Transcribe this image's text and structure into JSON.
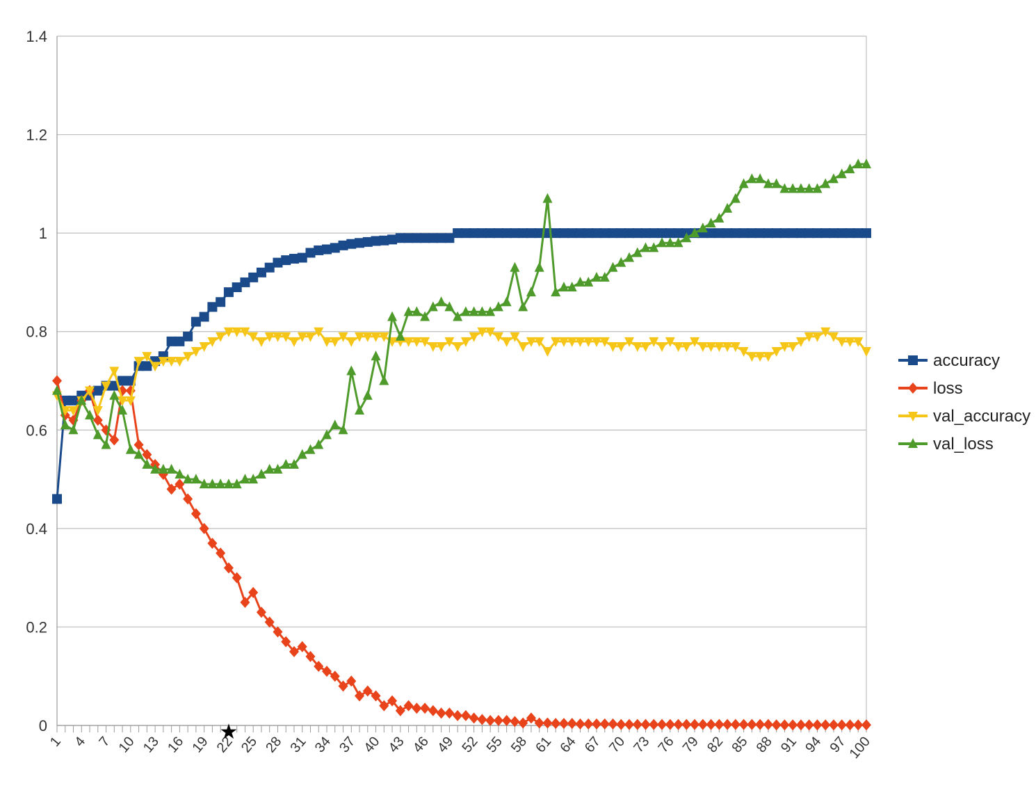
{
  "chart_data": {
    "type": "line",
    "title": "",
    "xlabel": "",
    "ylabel": "",
    "x": [
      1,
      2,
      3,
      4,
      5,
      6,
      7,
      8,
      9,
      10,
      11,
      12,
      13,
      14,
      15,
      16,
      17,
      18,
      19,
      20,
      21,
      22,
      23,
      24,
      25,
      26,
      27,
      28,
      29,
      30,
      31,
      32,
      33,
      34,
      35,
      36,
      37,
      38,
      39,
      40,
      41,
      42,
      43,
      44,
      45,
      46,
      47,
      48,
      49,
      50,
      51,
      52,
      53,
      54,
      55,
      56,
      57,
      58,
      59,
      60,
      61,
      62,
      63,
      64,
      65,
      66,
      67,
      68,
      69,
      70,
      71,
      72,
      73,
      74,
      75,
      76,
      77,
      78,
      79,
      80,
      81,
      82,
      83,
      84,
      85,
      86,
      87,
      88,
      89,
      90,
      91,
      92,
      93,
      94,
      95,
      96,
      97,
      98,
      99,
      100
    ],
    "x_tick_labels": [
      "1",
      "4",
      "7",
      "10",
      "13",
      "16",
      "19",
      "22",
      "25",
      "28",
      "31",
      "34",
      "37",
      "40",
      "43",
      "46",
      "49",
      "52",
      "55",
      "58",
      "61",
      "64",
      "67",
      "70",
      "73",
      "76",
      "79",
      "82",
      "85",
      "88",
      "91",
      "94",
      "97",
      "100"
    ],
    "ylim": [
      0,
      1.4
    ],
    "y_ticks": [
      0,
      0.2,
      0.4,
      0.6,
      0.8,
      1,
      1.2,
      1.4
    ],
    "y_tick_labels": [
      "0",
      "0.2",
      "0.4",
      "0.6",
      "0.8",
      "1",
      "1.2",
      "1.4"
    ],
    "grid": "horizontal",
    "legend_position": "right",
    "marker_annotation": {
      "symbol": "★",
      "x": 22
    },
    "series": [
      {
        "name": "accuracy",
        "color": "#1a4a8a",
        "marker": "square",
        "values": [
          0.46,
          0.66,
          0.66,
          0.67,
          0.67,
          0.68,
          0.69,
          0.69,
          0.7,
          0.7,
          0.73,
          0.73,
          0.74,
          0.75,
          0.78,
          0.78,
          0.79,
          0.82,
          0.83,
          0.85,
          0.86,
          0.88,
          0.89,
          0.9,
          0.91,
          0.92,
          0.93,
          0.94,
          0.945,
          0.948,
          0.95,
          0.96,
          0.965,
          0.967,
          0.97,
          0.975,
          0.978,
          0.98,
          0.982,
          0.984,
          0.985,
          0.987,
          0.99,
          0.99,
          0.99,
          0.99,
          0.99,
          0.99,
          0.99,
          1,
          1,
          1,
          1,
          1,
          1,
          1,
          1,
          1,
          1,
          1,
          1,
          1,
          1,
          1,
          1,
          1,
          1,
          1,
          1,
          1,
          1,
          1,
          1,
          1,
          1,
          1,
          1,
          1,
          1,
          1,
          1,
          1,
          1,
          1,
          1,
          1,
          1,
          1,
          1,
          1,
          1,
          1,
          1,
          1,
          1,
          1,
          1,
          1,
          1,
          1
        ]
      },
      {
        "name": "loss",
        "color": "#e8431a",
        "marker": "diamond",
        "values": [
          0.7,
          0.63,
          0.62,
          0.66,
          0.68,
          0.62,
          0.6,
          0.58,
          0.68,
          0.68,
          0.57,
          0.55,
          0.53,
          0.51,
          0.48,
          0.49,
          0.46,
          0.43,
          0.4,
          0.37,
          0.35,
          0.32,
          0.3,
          0.25,
          0.27,
          0.23,
          0.21,
          0.19,
          0.17,
          0.15,
          0.16,
          0.14,
          0.12,
          0.11,
          0.1,
          0.08,
          0.09,
          0.06,
          0.07,
          0.06,
          0.04,
          0.05,
          0.03,
          0.04,
          0.035,
          0.035,
          0.03,
          0.025,
          0.025,
          0.02,
          0.02,
          0.015,
          0.012,
          0.01,
          0.01,
          0.01,
          0.008,
          0.005,
          0.015,
          0.005,
          0.005,
          0.004,
          0.004,
          0.004,
          0.003,
          0.003,
          0.003,
          0.003,
          0.003,
          0.002,
          0.002,
          0.002,
          0.002,
          0.002,
          0.002,
          0.002,
          0.002,
          0.002,
          0.002,
          0.002,
          0.002,
          0.002,
          0.002,
          0.002,
          0.002,
          0.002,
          0.002,
          0.002,
          0.001,
          0.001,
          0.001,
          0.001,
          0.001,
          0.001,
          0.001,
          0.001,
          0.001,
          0.001,
          0.001,
          0.001
        ]
      },
      {
        "name": "val_accuracy",
        "color": "#f5c518",
        "marker": "triangle-down",
        "values": [
          0.67,
          0.64,
          0.64,
          0.66,
          0.68,
          0.64,
          0.69,
          0.72,
          0.66,
          0.66,
          0.74,
          0.75,
          0.73,
          0.74,
          0.74,
          0.74,
          0.75,
          0.76,
          0.77,
          0.78,
          0.79,
          0.8,
          0.8,
          0.8,
          0.79,
          0.78,
          0.79,
          0.79,
          0.79,
          0.78,
          0.79,
          0.79,
          0.8,
          0.78,
          0.78,
          0.79,
          0.78,
          0.79,
          0.79,
          0.79,
          0.79,
          0.78,
          0.78,
          0.78,
          0.78,
          0.78,
          0.77,
          0.77,
          0.78,
          0.77,
          0.78,
          0.79,
          0.8,
          0.8,
          0.79,
          0.78,
          0.79,
          0.77,
          0.78,
          0.78,
          0.76,
          0.78,
          0.78,
          0.78,
          0.78,
          0.78,
          0.78,
          0.78,
          0.77,
          0.77,
          0.78,
          0.77,
          0.77,
          0.78,
          0.77,
          0.78,
          0.77,
          0.77,
          0.78,
          0.77,
          0.77,
          0.77,
          0.77,
          0.77,
          0.76,
          0.75,
          0.75,
          0.75,
          0.76,
          0.77,
          0.77,
          0.78,
          0.79,
          0.79,
          0.8,
          0.79,
          0.78,
          0.78,
          0.78,
          0.76
        ]
      },
      {
        "name": "val_loss",
        "color": "#4e9a2a",
        "marker": "triangle-up",
        "values": [
          0.68,
          0.61,
          0.6,
          0.66,
          0.63,
          0.59,
          0.57,
          0.67,
          0.64,
          0.56,
          0.55,
          0.53,
          0.52,
          0.52,
          0.52,
          0.51,
          0.5,
          0.5,
          0.49,
          0.49,
          0.49,
          0.49,
          0.49,
          0.5,
          0.5,
          0.51,
          0.52,
          0.52,
          0.53,
          0.53,
          0.55,
          0.56,
          0.57,
          0.59,
          0.61,
          0.6,
          0.72,
          0.64,
          0.67,
          0.75,
          0.7,
          0.83,
          0.79,
          0.84,
          0.84,
          0.83,
          0.85,
          0.86,
          0.85,
          0.83,
          0.84,
          0.84,
          0.84,
          0.84,
          0.85,
          0.86,
          0.93,
          0.85,
          0.88,
          0.93,
          1.07,
          0.88,
          0.89,
          0.89,
          0.9,
          0.9,
          0.91,
          0.91,
          0.93,
          0.94,
          0.95,
          0.96,
          0.97,
          0.97,
          0.98,
          0.98,
          0.98,
          0.99,
          1,
          1.01,
          1.02,
          1.03,
          1.05,
          1.07,
          1.1,
          1.11,
          1.11,
          1.1,
          1.1,
          1.09,
          1.09,
          1.09,
          1.09,
          1.09,
          1.1,
          1.11,
          1.12,
          1.13,
          1.14,
          1.14
        ]
      }
    ]
  }
}
